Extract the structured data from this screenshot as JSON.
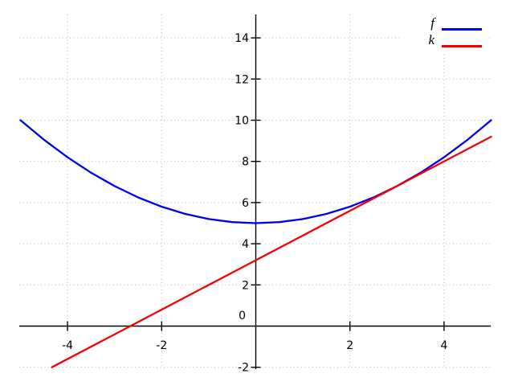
{
  "chart_data": {
    "type": "line",
    "title": "",
    "xlabel": "",
    "ylabel": "",
    "x_range": [
      -5,
      5
    ],
    "y_range": [
      -2,
      15
    ],
    "x_ticks": [
      -4,
      -2,
      2,
      4
    ],
    "y_ticks": [
      -2,
      0,
      2,
      4,
      6,
      8,
      10,
      12,
      14
    ],
    "grid": "dotted",
    "grid_color": "#b3b3b3",
    "axis_color": "#000000",
    "legend_position": "top-right",
    "series": [
      {
        "name": "f",
        "color": "#0000f0",
        "x": [
          -5,
          -4.5,
          -4,
          -3.5,
          -3,
          -2.5,
          -2,
          -1.5,
          -1,
          -0.5,
          0,
          0.5,
          1,
          1.5,
          2,
          2.5,
          3,
          3.5,
          4,
          4.5,
          5
        ],
        "y": [
          10,
          9.05,
          8.2,
          7.45,
          6.8,
          6.25,
          5.8,
          5.45,
          5.2,
          5.05,
          5,
          5.05,
          5.2,
          5.45,
          5.8,
          6.25,
          6.8,
          7.45,
          8.2,
          9.05,
          10
        ]
      },
      {
        "name": "k",
        "color": "#f40000",
        "x": [
          -4.3333,
          0,
          5
        ],
        "y": [
          -2,
          3.2,
          9.2
        ]
      }
    ],
    "legend": [
      {
        "label": "f",
        "color": "#0000f0"
      },
      {
        "label": "k",
        "color": "#f40000"
      }
    ]
  }
}
